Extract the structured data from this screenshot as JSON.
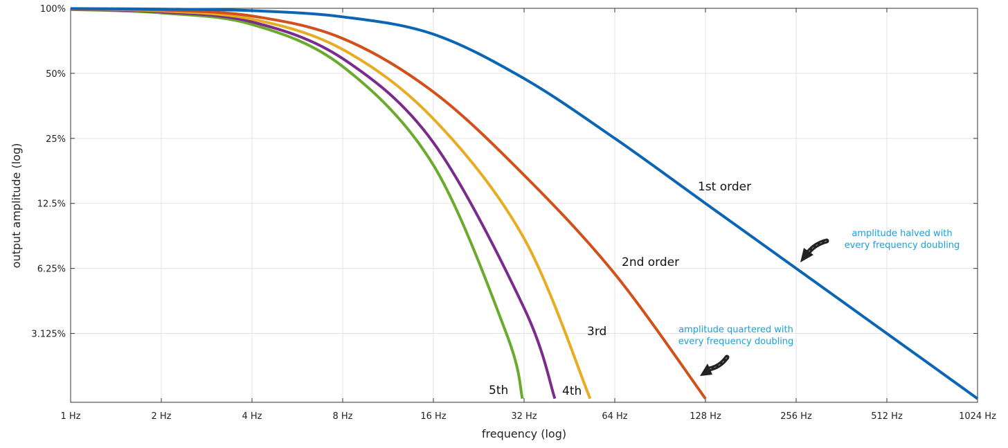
{
  "chart_data": {
    "type": "line",
    "title": "",
    "xlabel": "frequency (log)",
    "ylabel": "output amplitude (log)",
    "x_scale": "log2",
    "y_scale": "log2",
    "xlim": [
      1,
      1024
    ],
    "ylim": [
      1.5,
      100
    ],
    "x_ticks": [
      {
        "value": 1,
        "label": "1 Hz"
      },
      {
        "value": 2,
        "label": "2 Hz"
      },
      {
        "value": 4,
        "label": "4 Hz"
      },
      {
        "value": 8,
        "label": "8 Hz"
      },
      {
        "value": 16,
        "label": "16 Hz"
      },
      {
        "value": 32,
        "label": "32 Hz"
      },
      {
        "value": 64,
        "label": "64 Hz"
      },
      {
        "value": 128,
        "label": "128 Hz"
      },
      {
        "value": 256,
        "label": "256 Hz"
      },
      {
        "value": 512,
        "label": "512 Hz"
      },
      {
        "value": 1024,
        "label": "1024 Hz"
      }
    ],
    "y_ticks": [
      {
        "value": 100,
        "label": "100%"
      },
      {
        "value": 50,
        "label": "50%"
      },
      {
        "value": 25,
        "label": "25%"
      },
      {
        "value": 12.5,
        "label": "12.5%"
      },
      {
        "value": 6.25,
        "label": "6.25%"
      },
      {
        "value": 3.125,
        "label": "3.125%"
      }
    ],
    "grid": true,
    "series": [
      {
        "label": "1st order",
        "color": "#0a66b5",
        "x": [
          1,
          2,
          4,
          8,
          16,
          32,
          64,
          128,
          256,
          512,
          1024
        ],
        "y": [
          99.7,
          99.2,
          97.5,
          91.3,
          75.9,
          47.3,
          25.0,
          12.5,
          6.25,
          3.125,
          1.56
        ]
      },
      {
        "label": "2nd order",
        "color": "#d2501b",
        "x": [
          1,
          2,
          4,
          8,
          16,
          32,
          64,
          128
        ],
        "y": [
          99.4,
          98.2,
          92.1,
          72.5,
          41.0,
          16.9,
          5.9,
          1.56
        ]
      },
      {
        "label": "3rd",
        "color": "#e6ad22",
        "x": [
          1,
          2,
          4,
          8,
          16,
          32,
          53
        ],
        "y": [
          99.2,
          97.2,
          89.1,
          64.5,
          30.8,
          8.6,
          1.56
        ]
      },
      {
        "label": "4th",
        "color": "#7b2b8c",
        "x": [
          1,
          2,
          4,
          8,
          16,
          32,
          40.5
        ],
        "y": [
          98.9,
          96.2,
          86.5,
          58.5,
          23.9,
          4.1,
          1.56
        ]
      },
      {
        "label": "5th",
        "color": "#6aaa2c",
        "x": [
          1,
          2,
          4,
          8,
          16,
          28,
          31.6
        ],
        "y": [
          98.7,
          95.2,
          84.2,
          53.8,
          18.8,
          3.1,
          1.56
        ]
      }
    ],
    "annotations": [
      {
        "text": [
          "amplitude halved with",
          "every frequency doubling"
        ],
        "color": "#1aa0e0"
      },
      {
        "text": [
          "amplitude quartered with",
          "every frequency doubling"
        ],
        "color": "#1aa0e0"
      }
    ]
  }
}
